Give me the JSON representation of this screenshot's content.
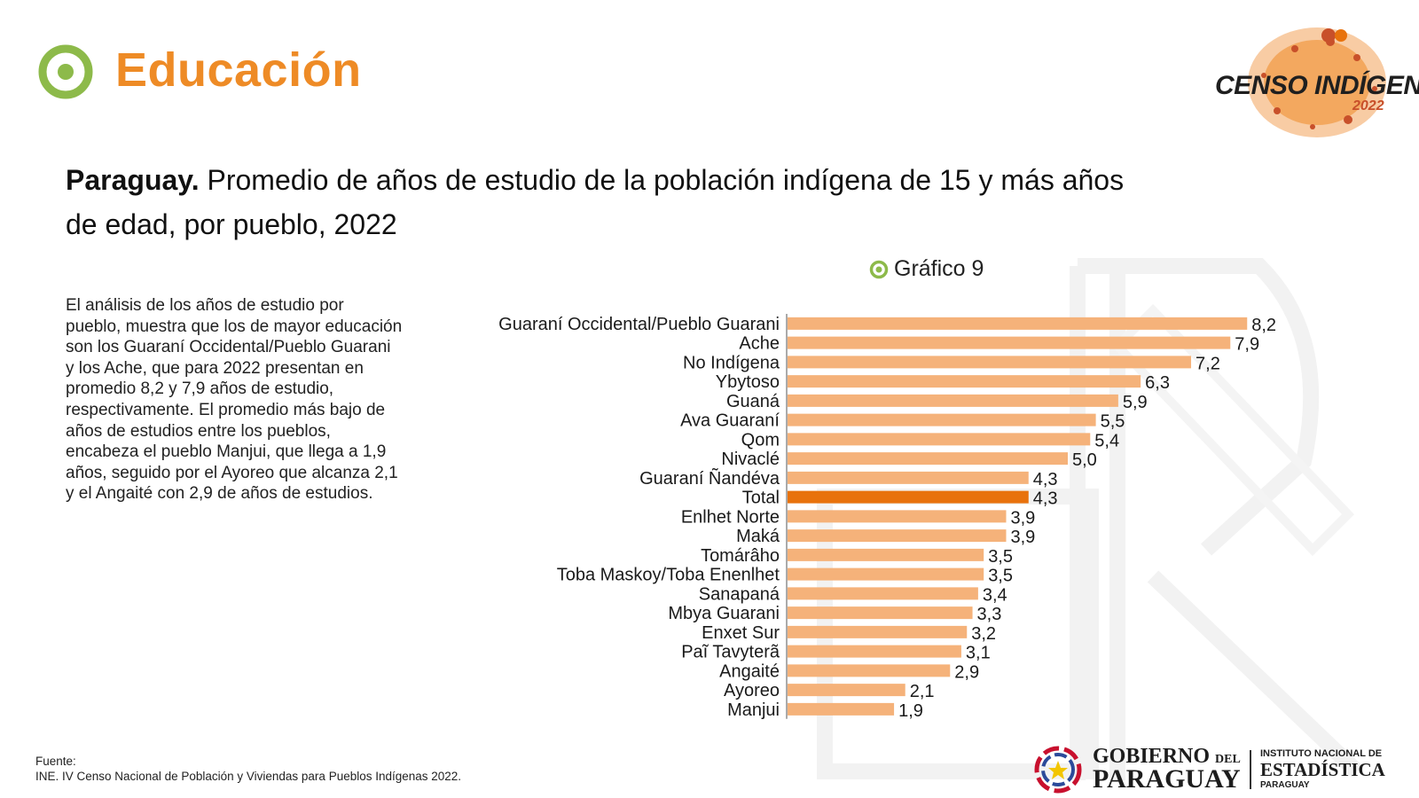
{
  "header": {
    "section_title": "Educación",
    "logo_line1": "CENSO INDÍGENA",
    "logo_line2": "2022"
  },
  "headline": {
    "bold": "Paraguay.",
    "rest_line1": "Promedio de años de estudio de la población indígena de 15 y  más años",
    "rest_line2": "de edad, por pueblo, 2022"
  },
  "chart_label": "Gráfico 9",
  "body_text": "El análisis de los años de estudio por pueblo, muestra que los de mayor educación son los Guaraní Occidental/Pueblo Guarani y los Ache, que para 2022 presentan en promedio 8,2 y 7,9 años de estudio, respectivamente. El promedio más bajo de años de estudios entre  los pueblos, encabeza  el pueblo Manjui, que llega a 1,9 años, seguido por el Ayoreo que alcanza 2,1 y el Angaité con 2,9 de años de estudios.",
  "source": {
    "label": "Fuente:",
    "text": "INE. IV Censo Nacional de Población y Viviendas para Pueblos Indígenas 2022."
  },
  "footer_logo": {
    "gov_line1": "GOBIERNO",
    "gov_del": "DEL",
    "gov_line2": "PARAGUAY",
    "ine_line1": "INSTITUTO NACIONAL DE",
    "ine_line2": "ESTADÍSTICA",
    "ine_line3": "PARAGUAY"
  },
  "colors": {
    "accent": "#ee8b26",
    "icon_green": "#8dba4a",
    "bar": "#f5b27a",
    "bar_highlight": "#e8720c"
  },
  "chart_data": {
    "type": "bar",
    "orientation": "horizontal",
    "categories": [
      "Guaraní Occidental/Pueblo Guarani",
      "Ache",
      "No Indígena",
      "Ybytoso",
      "Guaná",
      "Ava Guaraní",
      "Qom",
      "Nivaclé",
      "Guaraní Ñandéva",
      "Total",
      "Enlhet Norte",
      "Maká",
      "Tomárâho",
      "Toba Maskoy/Toba Enenlhet",
      "Sanapaná",
      "Mbya Guarani",
      "Enxet Sur",
      "Paĩ Tavyterã",
      "Angaité",
      "Ayoreo",
      "Manjui"
    ],
    "values": [
      8.2,
      7.9,
      7.2,
      6.3,
      5.9,
      5.5,
      5.4,
      5.0,
      4.3,
      4.3,
      3.9,
      3.9,
      3.5,
      3.5,
      3.4,
      3.3,
      3.2,
      3.1,
      2.9,
      2.1,
      1.9
    ],
    "value_labels": [
      "8,2",
      "7,9",
      "7,2",
      "6,3",
      "5,9",
      "5,5",
      "5,4",
      "5,0",
      "4,3",
      "4,3",
      "3,9",
      "3,9",
      "3,5",
      "3,5",
      "3,4",
      "3,3",
      "3,2",
      "3,1",
      "2,9",
      "2,1",
      "1,9"
    ],
    "highlight_category": "Total",
    "grid": false
  }
}
